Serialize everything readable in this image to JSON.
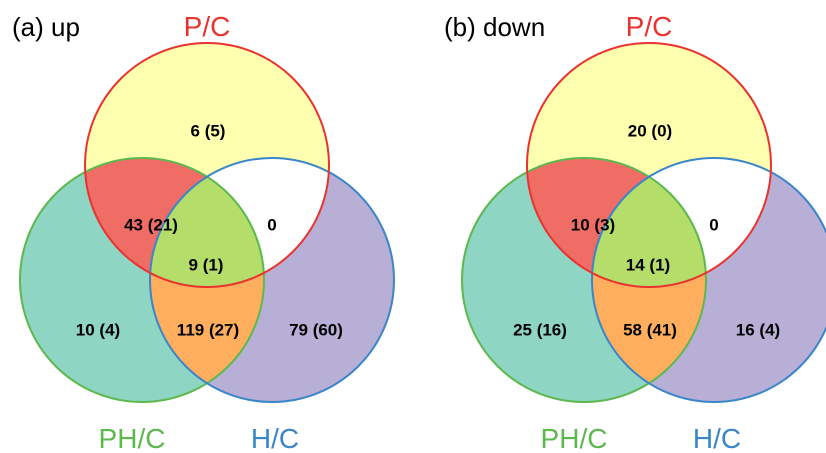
{
  "colors": {
    "p_only": "#FFFFB0",
    "ph_only": "#8ED5C4",
    "h_only": "#B8AFD6",
    "p_ph": "#F06D66",
    "ph_h": "#FFAE5E",
    "p_h": "#FFFFFF",
    "all": "#B5DD6A",
    "p_stroke": "#E8332E",
    "ph_stroke": "#5DB84E",
    "h_stroke": "#3A86C8"
  },
  "panels": [
    {
      "title": "(a) up",
      "sets": {
        "p": "P/C",
        "ph": "PH/C",
        "h": "H/C"
      },
      "regions": {
        "p_only": "6 (5)",
        "p_ph": "43 (21)",
        "p_h": "0",
        "all": "9 (1)",
        "ph_only": "10 (4)",
        "ph_h": "119 (27)",
        "h_only": "79 (60)"
      }
    },
    {
      "title": "(b) down",
      "sets": {
        "p": "P/C",
        "ph": "PH/C",
        "h": "H/C"
      },
      "regions": {
        "p_only": "20 (0)",
        "p_ph": "10 (3)",
        "p_h": "0",
        "all": "14 (1)",
        "ph_only": "25 (16)",
        "ph_h": "58 (41)",
        "h_only": "16 (4)"
      }
    }
  ]
}
